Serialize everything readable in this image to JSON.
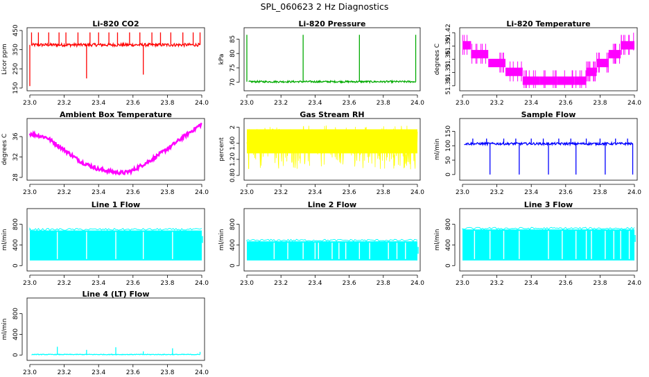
{
  "title": "SPL_060623  2 Hz Diagnostics",
  "chart_data": [
    {
      "type": "line",
      "title": "Li-820 CO2",
      "xlabel": "",
      "ylabel": "Licor ppm",
      "color": "#ff0000",
      "xlim": [
        23.0,
        24.0
      ],
      "ylim": [
        150,
        450
      ],
      "xticks": [
        "23.0",
        "23.2",
        "23.4",
        "23.6",
        "23.8",
        "24.0"
      ],
      "yticks": [
        150,
        250,
        350,
        450
      ],
      "series": [
        {
          "name": "CO2",
          "baseline": 375,
          "noise": 8,
          "spikes_up": [
            23.01,
            23.05,
            23.11,
            23.17,
            23.21,
            23.28,
            23.35,
            23.4,
            23.46,
            23.51,
            23.58,
            23.64,
            23.71,
            23.76,
            23.82,
            23.89,
            23.95,
            23.99
          ],
          "spike_up_to": 440,
          "spikes_down": [
            23.0,
            23.33,
            23.66
          ],
          "spike_down_to": [
            160,
            200,
            220
          ]
        }
      ]
    },
    {
      "type": "line",
      "title": "Li-820 Pressure",
      "xlabel": "",
      "ylabel": "kPa",
      "color": "#00aa00",
      "xlim": [
        23.0,
        24.0
      ],
      "ylim": [
        68,
        88
      ],
      "xticks": [
        "23.0",
        "23.2",
        "23.4",
        "23.6",
        "23.8",
        "24.0"
      ],
      "yticks": [
        70,
        75,
        80,
        85
      ],
      "series": [
        {
          "name": "Pressure",
          "baseline": 70.2,
          "noise": 0.3,
          "spikes_up": [
            23.0,
            23.33,
            23.66,
            23.99
          ],
          "spike_up_to": 86.5,
          "spikes_down": [],
          "spike_down_to": []
        }
      ]
    },
    {
      "type": "step",
      "title": "Li-820 Temperature",
      "xlabel": "",
      "ylabel": "degrees C",
      "color": "#ff00ff",
      "xlim": [
        23.0,
        24.0
      ],
      "ylim": [
        51.295,
        51.425
      ],
      "xticks": [
        "23.0",
        "23.2",
        "23.4",
        "23.6",
        "23.8",
        "24.0"
      ],
      "yticks": [
        51.3,
        51.33,
        51.36,
        51.39,
        51.42
      ],
      "series": [
        {
          "name": "Temperature",
          "x": [
            23.0,
            23.05,
            23.15,
            23.25,
            23.35,
            23.45,
            23.55,
            23.65,
            23.72,
            23.78,
            23.85,
            23.92,
            24.0
          ],
          "y": [
            51.39,
            51.37,
            51.35,
            51.33,
            51.31,
            51.31,
            51.31,
            51.31,
            51.33,
            51.35,
            51.37,
            51.39,
            51.4
          ]
        }
      ]
    },
    {
      "type": "line",
      "title": "Ambient Box Temperature",
      "xlabel": "",
      "ylabel": "degrees C",
      "color": "#ff00ff",
      "xlim": [
        23.0,
        24.0
      ],
      "ylim": [
        28,
        39
      ],
      "xticks": [
        "23.0",
        "23.2",
        "23.4",
        "23.6",
        "23.8",
        "24.0"
      ],
      "yticks": [
        28,
        32,
        36
      ],
      "series": [
        {
          "name": "Box Temp",
          "x": [
            23.0,
            23.1,
            23.2,
            23.3,
            23.4,
            23.5,
            23.55,
            23.6,
            23.7,
            23.8,
            23.9,
            24.0
          ],
          "y": [
            36.6,
            35.8,
            33.4,
            31.0,
            29.6,
            29.0,
            28.9,
            29.4,
            31.3,
            33.6,
            36.1,
            38.5
          ]
        }
      ]
    },
    {
      "type": "line",
      "title": "Gas Stream RH",
      "xlabel": "",
      "ylabel": "percent",
      "color": "#ffff00",
      "xlim": [
        23.0,
        24.0
      ],
      "ylim": [
        0.75,
        2.15
      ],
      "xticks": [
        "23.0",
        "23.2",
        "23.4",
        "23.6",
        "23.8",
        "24.0"
      ],
      "yticks": [
        0.8,
        1.2,
        1.6,
        2.0
      ],
      "series": [
        {
          "name": "RH",
          "band_low": 0.95,
          "band_high": 2.05,
          "core_low": 1.35,
          "core_high": 1.95
        }
      ]
    },
    {
      "type": "line",
      "title": "Sample Flow",
      "xlabel": "",
      "ylabel": "ml/min",
      "color": "#0000ff",
      "xlim": [
        23.0,
        24.0
      ],
      "ylim": [
        -10,
        185
      ],
      "xticks": [
        "23.0",
        "23.2",
        "23.4",
        "23.6",
        "23.8",
        "24.0"
      ],
      "yticks": [
        0,
        50,
        100,
        150
      ],
      "series": [
        {
          "name": "Sample Flow",
          "baseline": 107,
          "noise": 4,
          "spikes_down": [
            23.16,
            23.33,
            23.5,
            23.66,
            23.83,
            23.99
          ],
          "spike_down_to": 0,
          "spikes_up": [
            23.06,
            23.14,
            23.24,
            23.31,
            23.4,
            23.47,
            23.56,
            23.63,
            23.72,
            23.8,
            23.89,
            23.96
          ],
          "spike_up_to": 125
        }
      ]
    },
    {
      "type": "area",
      "title": "Line 1 Flow",
      "xlabel": "",
      "ylabel": "ml/min",
      "color": "#00ffff",
      "xlim": [
        23.0,
        24.0
      ],
      "ylim": [
        -50,
        1050
      ],
      "xticks": [
        "23.0",
        "23.2",
        "23.4",
        "23.6",
        "23.8",
        "24.0"
      ],
      "yticks": [
        0,
        400,
        800
      ],
      "series": [
        {
          "name": "Line 1",
          "low": 100,
          "high": 680,
          "gaps": [
            23.16,
            23.33,
            23.5,
            23.66,
            23.83
          ]
        }
      ]
    },
    {
      "type": "area",
      "title": "Line 2 Flow",
      "xlabel": "",
      "ylabel": "ml/min",
      "color": "#00ffff",
      "xlim": [
        23.0,
        24.0
      ],
      "ylim": [
        -50,
        1050
      ],
      "xticks": [
        "23.0",
        "23.2",
        "23.4",
        "23.6",
        "23.8",
        "24.0"
      ],
      "yticks": [
        0,
        400,
        800
      ],
      "series": [
        {
          "name": "Line 2",
          "low": 100,
          "high": 470,
          "gaps": [
            23.16,
            23.24,
            23.33,
            23.4,
            23.42,
            23.5,
            23.54,
            23.58,
            23.66,
            23.72,
            23.83,
            23.88,
            23.93
          ]
        }
      ]
    },
    {
      "type": "area",
      "title": "Line 3 Flow",
      "xlabel": "",
      "ylabel": "ml/min",
      "color": "#00ffff",
      "xlim": [
        23.0,
        24.0
      ],
      "ylim": [
        -50,
        1050
      ],
      "xticks": [
        "23.0",
        "23.2",
        "23.4",
        "23.6",
        "23.8",
        "24.0"
      ],
      "yticks": [
        0,
        400,
        800
      ],
      "series": [
        {
          "name": "Line 3",
          "low": 100,
          "high": 700,
          "gaps": [
            23.07,
            23.16,
            23.24,
            23.33,
            23.5,
            23.58,
            23.66,
            23.72,
            23.75,
            23.83,
            23.88,
            23.92,
            23.97
          ]
        }
      ]
    },
    {
      "type": "line",
      "title": "Line 4 (LT) Flow",
      "xlabel": "",
      "ylabel": "ml/min",
      "color": "#00ffff",
      "xlim": [
        23.0,
        24.0
      ],
      "ylim": [
        -50,
        1050
      ],
      "xticks": [
        "23.0",
        "23.2",
        "23.4",
        "23.6",
        "23.8",
        "24.0"
      ],
      "yticks": [
        0,
        400,
        800
      ],
      "series": [
        {
          "name": "Line 4",
          "baseline": 10,
          "noise": 6,
          "spikes_up": [
            23.16,
            23.33,
            23.5,
            23.66,
            23.83,
            23.99
          ],
          "spike_up_to": [
            160,
            100,
            150,
            70,
            130,
            60
          ]
        }
      ]
    }
  ]
}
